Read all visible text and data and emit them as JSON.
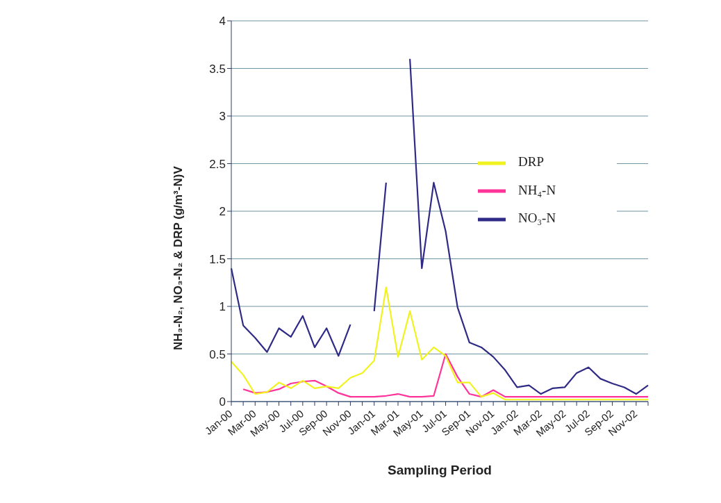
{
  "chart_data": {
    "type": "line",
    "xlabel": "Sampling Period",
    "ylabel": "NH₃-N₂, NO₃-N₂ & DRP (g/m³-N)V",
    "categories": [
      "Jan-00",
      null,
      "Mar-00",
      null,
      "May-00",
      null,
      "Jul-00",
      null,
      "Sep-00",
      null,
      "Nov-00",
      null,
      "Jan-01",
      null,
      "Mar-01",
      null,
      "May-01",
      null,
      "Jul-01",
      null,
      "Sep-01",
      null,
      "Nov-01",
      null,
      "Jan-02",
      null,
      "Mar-02",
      null,
      "May-02",
      null,
      "Jul-02",
      null,
      "Sep-02",
      null,
      "Nov-02",
      null
    ],
    "series": [
      {
        "name": "NO₃-N",
        "color": "#2e2a86",
        "values": [
          1.4,
          0.8,
          0.67,
          0.52,
          0.77,
          0.68,
          0.9,
          0.57,
          0.77,
          0.48,
          0.81,
          null,
          0.95,
          2.3,
          null,
          3.6,
          1.4,
          2.3,
          1.79,
          0.99,
          0.62,
          0.57,
          0.47,
          0.33,
          0.15,
          0.17,
          0.08,
          0.14,
          0.15,
          0.3,
          0.36,
          0.24,
          0.19,
          0.15,
          0.08,
          0.17
        ]
      },
      {
        "name": "NH₄-N",
        "color": "#ff3399",
        "values": [
          null,
          0.13,
          0.09,
          0.1,
          0.13,
          0.19,
          0.21,
          0.22,
          0.16,
          0.09,
          0.05,
          0.05,
          0.05,
          0.06,
          0.08,
          0.05,
          0.05,
          0.06,
          0.5,
          0.26,
          0.08,
          0.05,
          0.12,
          0.05,
          0.05,
          0.05,
          0.05,
          0.05,
          0.05,
          0.05,
          0.05,
          0.05,
          0.05,
          0.05,
          0.05,
          0.05
        ]
      },
      {
        "name": "DRP",
        "color": "#f2f21f",
        "values": [
          0.42,
          0.28,
          0.08,
          0.1,
          0.2,
          0.14,
          0.22,
          0.14,
          0.16,
          0.14,
          0.25,
          0.3,
          0.43,
          1.2,
          0.47,
          0.95,
          0.44,
          0.57,
          0.48,
          0.2,
          0.2,
          0.05,
          0.09,
          0.02,
          0.02,
          0.02,
          0.02,
          0.02,
          0.02,
          0.02,
          0.02,
          0.02,
          0.02,
          0.02,
          0.02,
          0.02
        ]
      }
    ],
    "ylim": [
      0,
      4
    ],
    "yticks": [
      0,
      0.5,
      1,
      1.5,
      2,
      2.5,
      3,
      3.5,
      4
    ],
    "grid": "y",
    "legend": "right",
    "line_style": "solid"
  }
}
